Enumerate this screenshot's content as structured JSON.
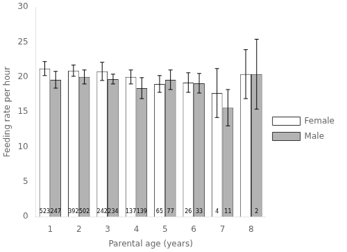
{
  "chart_data": {
    "type": "bar",
    "categories": [
      "1",
      "2",
      "3",
      "4",
      "5",
      "6",
      "7",
      "8"
    ],
    "series": [
      {
        "name": "Female",
        "color": "#ffffff",
        "values": [
          21.2,
          20.9,
          20.8,
          20.0,
          19.0,
          19.2,
          17.7,
          20.4
        ],
        "error_low": [
          1.0,
          0.8,
          1.3,
          1.0,
          1.2,
          1.4,
          3.5,
          3.5
        ],
        "error_high": [
          1.0,
          0.8,
          1.3,
          1.0,
          1.2,
          1.4,
          3.5,
          3.5
        ],
        "n": [
          523,
          392,
          242,
          137,
          65,
          26,
          4,
          null
        ]
      },
      {
        "name": "Male",
        "color": "#b3b3b3",
        "values": [
          19.6,
          20.0,
          19.7,
          18.4,
          19.6,
          19.1,
          15.6,
          20.4
        ],
        "error_low": [
          1.2,
          1.0,
          0.7,
          1.5,
          1.4,
          1.4,
          2.6,
          5.0
        ],
        "error_high": [
          1.2,
          1.0,
          0.7,
          1.5,
          1.4,
          1.4,
          2.6,
          5.0
        ],
        "n": [
          247,
          502,
          234,
          139,
          77,
          33,
          11,
          2
        ]
      }
    ],
    "xlabel": "Parental age (years)",
    "ylabel": "Feeding rate per hour",
    "ylim": [
      0,
      30
    ],
    "yticks": [
      0,
      5,
      10,
      15,
      20,
      25,
      30
    ],
    "grid": false,
    "legend": "right"
  }
}
